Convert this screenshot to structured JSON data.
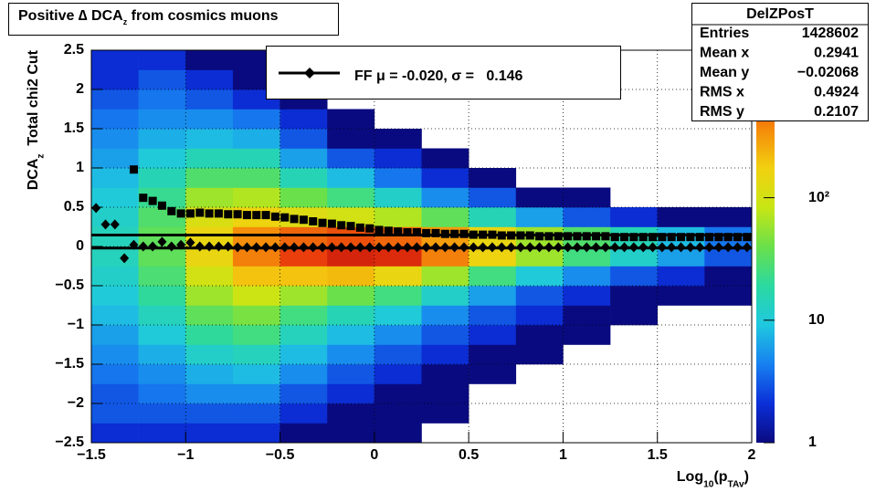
{
  "chart_data": {
    "type": "heatmap",
    "title": [
      "Positive ∆ DCA",
      "z",
      " from cosmics muons"
    ],
    "x_label": [
      "Log",
      "10",
      "(p",
      "TAv",
      ")"
    ],
    "y_label": [
      "DCA",
      "z",
      "  Total chi2 Cut"
    ],
    "xlim": [
      -1.5,
      2
    ],
    "ylim": [
      -2.5,
      2.5
    ],
    "xticks": [
      {
        "value": -1.5,
        "label": "−1.5"
      },
      {
        "value": -1,
        "label": "−1"
      },
      {
        "value": -0.5,
        "label": "−0.5"
      },
      0,
      0.5,
      1,
      1.5,
      2
    ],
    "yticks": [
      {
        "value": -2.5,
        "label": "−2.5"
      },
      {
        "value": -2,
        "label": "−2"
      },
      {
        "value": -1.5,
        "label": "−1.5"
      },
      {
        "value": -1,
        "label": "−1"
      },
      {
        "value": -0.5,
        "label": "−0.5"
      },
      0,
      0.5,
      1,
      1.5,
      2,
      2.5
    ],
    "grid": true,
    "xbins": [
      -1.5,
      -1.25,
      -1,
      -0.75,
      -0.5,
      -0.25,
      0,
      0.25,
      0.5,
      0.75,
      1,
      1.25,
      1.5,
      1.75,
      2
    ],
    "ybins": [
      -2.5,
      -2.25,
      -2,
      -1.75,
      -1.5,
      -1.25,
      -1,
      -0.75,
      -0.5,
      -0.25,
      0,
      0.25,
      0.5,
      0.75,
      1,
      1.25,
      1.5,
      1.75,
      2,
      2.25,
      2.5
    ],
    "z": [
      [
        2,
        2,
        2,
        2,
        1,
        1,
        1,
        0,
        0,
        0,
        0,
        0,
        0,
        0
      ],
      [
        3,
        3,
        3,
        3,
        2,
        1,
        1,
        1,
        0,
        0,
        0,
        0,
        0,
        0
      ],
      [
        3,
        4,
        5,
        5,
        3,
        2,
        1,
        1,
        0,
        0,
        0,
        0,
        0,
        0
      ],
      [
        4,
        5,
        7,
        8,
        5,
        3,
        2,
        1,
        1,
        0,
        0,
        0,
        0,
        0
      ],
      [
        5,
        7,
        12,
        14,
        8,
        5,
        3,
        2,
        1,
        1,
        0,
        0,
        0,
        0
      ],
      [
        6,
        10,
        20,
        25,
        14,
        8,
        5,
        3,
        2,
        1,
        1,
        0,
        0,
        0
      ],
      [
        8,
        14,
        35,
        45,
        25,
        15,
        10,
        5,
        3,
        2,
        1,
        1,
        0,
        0
      ],
      [
        10,
        20,
        60,
        90,
        60,
        40,
        25,
        12,
        6,
        3,
        2,
        1,
        1,
        1
      ],
      [
        12,
        28,
        100,
        200,
        200,
        220,
        150,
        60,
        25,
        10,
        5,
        3,
        2,
        1
      ],
      [
        14,
        35,
        150,
        400,
        700,
        1000,
        900,
        400,
        160,
        60,
        25,
        12,
        6,
        3
      ],
      [
        14,
        35,
        150,
        350,
        500,
        600,
        500,
        300,
        150,
        60,
        30,
        15,
        8,
        4
      ],
      [
        12,
        30,
        110,
        160,
        120,
        100,
        70,
        35,
        15,
        6,
        3,
        2,
        1,
        1
      ],
      [
        10,
        22,
        60,
        70,
        40,
        25,
        12,
        5,
        3,
        1,
        1,
        0,
        0,
        0
      ],
      [
        8,
        15,
        30,
        30,
        15,
        8,
        4,
        2,
        1,
        0,
        0,
        0,
        0,
        0
      ],
      [
        6,
        10,
        15,
        15,
        6,
        3,
        2,
        1,
        0,
        0,
        0,
        0,
        0,
        0
      ],
      [
        5,
        7,
        8,
        7,
        3,
        1,
        1,
        0,
        0,
        0,
        0,
        0,
        0,
        0
      ],
      [
        4,
        5,
        5,
        4,
        2,
        1,
        0,
        0,
        0,
        0,
        0,
        0,
        0,
        0
      ],
      [
        3,
        4,
        3,
        2,
        1,
        0,
        0,
        0,
        0,
        0,
        0,
        0,
        0,
        0
      ],
      [
        2,
        3,
        2,
        1,
        1,
        0,
        0,
        0,
        0,
        0,
        0,
        0,
        0,
        0
      ],
      [
        2,
        2,
        1,
        1,
        0,
        0,
        0,
        0,
        0,
        0,
        0,
        0,
        0,
        0
      ]
    ],
    "zscale": "log",
    "zlim": [
      1,
      1600
    ],
    "zticks": [
      1,
      10,
      {
        "value": 100,
        "label": "10²"
      }
    ],
    "palette": [
      "#0a0a80",
      "#0b2fd8",
      "#1780f0",
      "#1fc8e0",
      "#2bd9a0",
      "#6ae04a",
      "#c8e614",
      "#f2d010",
      "#f58a0a",
      "#e8340c",
      "#b00c0c"
    ],
    "profile": {
      "x": [
        -1.475,
        -1.425,
        -1.375,
        -1.325,
        -1.275,
        -1.225,
        -1.175,
        -1.125,
        -1.075,
        -1.025,
        -0.975,
        -0.925,
        -0.875,
        -0.825,
        -0.775,
        -0.725,
        -0.675,
        -0.625,
        -0.575,
        -0.525,
        -0.475,
        -0.425,
        -0.375,
        -0.325,
        -0.275,
        -0.225,
        -0.175,
        -0.125,
        -0.075,
        -0.025,
        0.025,
        0.075,
        0.125,
        0.175,
        0.225,
        0.275,
        0.325,
        0.375,
        0.425,
        0.475,
        0.525,
        0.575,
        0.625,
        0.675,
        0.725,
        0.775,
        0.825,
        0.875,
        0.925,
        0.975,
        1.025,
        1.075,
        1.125,
        1.175,
        1.225,
        1.275,
        1.325,
        1.375,
        1.425,
        1.475,
        1.525,
        1.575,
        1.625,
        1.675,
        1.725,
        1.775,
        1.825,
        1.875,
        1.925,
        1.975
      ],
      "series": [
        {
          "marker": "square",
          "color": "#000000",
          "values": [
            null,
            null,
            null,
            null,
            0.98,
            0.62,
            0.58,
            0.52,
            0.45,
            0.42,
            0.42,
            0.43,
            0.42,
            0.42,
            0.41,
            0.41,
            0.4,
            0.4,
            0.4,
            0.38,
            0.37,
            0.35,
            0.34,
            0.32,
            0.3,
            0.29,
            0.27,
            0.26,
            0.24,
            0.23,
            0.21,
            0.2,
            0.19,
            0.18,
            0.18,
            0.17,
            0.17,
            0.16,
            0.16,
            0.16,
            0.15,
            0.15,
            0.15,
            0.14,
            0.14,
            0.14,
            0.14,
            0.13,
            0.13,
            0.13,
            0.13,
            0.13,
            0.13,
            0.13,
            0.13,
            0.12,
            0.12,
            0.12,
            0.12,
            0.12,
            0.12,
            0.12,
            0.12,
            0.12,
            0.12,
            0.12,
            0.12,
            0.12,
            0.12,
            0.12
          ]
        },
        {
          "marker": "diamond",
          "color": "#000000",
          "values": [
            0.49,
            0.28,
            0.28,
            -0.15,
            0.02,
            0.0,
            0.0,
            0.06,
            0.0,
            0.02,
            0.05,
            0.0,
            0.0,
            0.0,
            0.0,
            -0.01,
            -0.01,
            -0.01,
            -0.01,
            -0.01,
            -0.01,
            -0.01,
            -0.01,
            -0.01,
            -0.01,
            -0.01,
            -0.01,
            -0.01,
            -0.01,
            -0.01,
            -0.01,
            -0.01,
            -0.01,
            -0.01,
            -0.01,
            -0.01,
            -0.01,
            -0.01,
            -0.01,
            -0.01,
            -0.01,
            -0.01,
            -0.01,
            -0.01,
            -0.01,
            -0.01,
            -0.01,
            -0.01,
            -0.01,
            -0.01,
            -0.01,
            -0.01,
            -0.01,
            -0.01,
            -0.01,
            -0.01,
            -0.01,
            -0.01,
            -0.01,
            -0.01,
            -0.01,
            -0.01,
            -0.01,
            -0.01,
            -0.01,
            -0.01,
            -0.01,
            -0.01,
            -0.01,
            -0.01
          ]
        }
      ]
    },
    "fit_lines": [
      0.146,
      -0.02
    ],
    "legend": {
      "text": "FF μ = -0.020, σ =   0.146",
      "marker": "diamond"
    },
    "stats": {
      "title": "DelZPosT",
      "rows": [
        [
          "Entries",
          "1428602"
        ],
        [
          "Mean x",
          "0.2941"
        ],
        [
          "Mean y",
          "−0.02068"
        ],
        [
          "RMS x",
          "0.4924"
        ],
        [
          "RMS y",
          "0.2107"
        ]
      ]
    }
  }
}
